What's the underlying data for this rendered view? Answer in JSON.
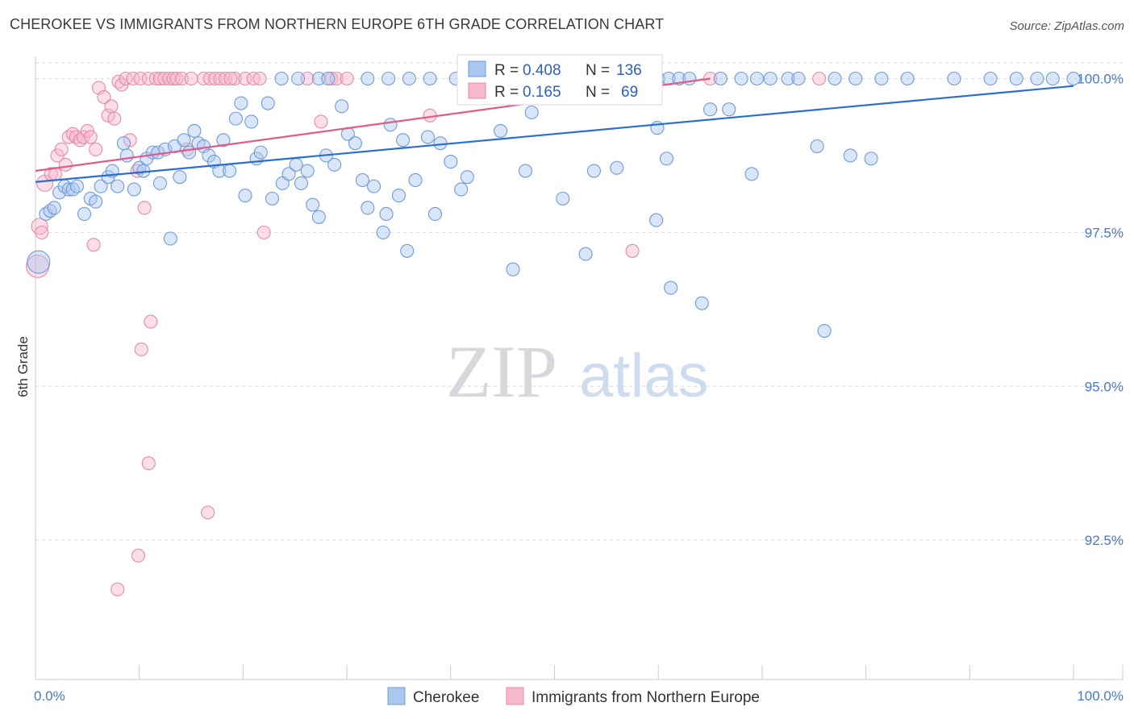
{
  "title": "CHEROKEE VS IMMIGRANTS FROM NORTHERN EUROPE 6TH GRADE CORRELATION CHART",
  "source": "Source: ZipAtlas.com",
  "watermark": {
    "zip": "ZIP",
    "atlas": "atlas"
  },
  "colors": {
    "cherokee_fill": "#aac8ef",
    "cherokee_stroke": "#6f9bd8",
    "cherokee_line": "#2a6ed0",
    "immig_fill": "#f6b8cc",
    "immig_stroke": "#e78aa8",
    "immig_line": "#e05b8a",
    "grid": "#d9dce3",
    "axis_text": "#4a78c6"
  },
  "legend": {
    "r_label": "R =",
    "n_label": "N =",
    "cherokee": {
      "r": "0.408",
      "n": "136"
    },
    "immig": {
      "r": "0.165",
      "n": "69"
    }
  },
  "bottom_legend": {
    "cherokee": "Cherokee",
    "immig": "Immigrants from Northern Europe"
  },
  "chart_data": {
    "type": "scatter",
    "title": "CHEROKEE VS IMMIGRANTS FROM NORTHERN EUROPE 6TH GRADE CORRELATION CHART",
    "xlabel": "",
    "ylabel": "6th Grade",
    "xlim": [
      0,
      100
    ],
    "ylim": [
      90.25,
      100.3
    ],
    "x_tick_labels": [
      "0.0%",
      "100.0%"
    ],
    "y_ticks": [
      92.5,
      95.0,
      97.5,
      100.0
    ],
    "y_tick_labels": [
      "92.5%",
      "95.0%",
      "97.5%",
      "100.0%"
    ],
    "grid": true,
    "legend_position": "top-center",
    "series": [
      {
        "name": "Cherokee",
        "r": 0.408,
        "n": 136,
        "trend": {
          "x0": 0,
          "y0": 98.32,
          "x1": 100,
          "y1": 99.88
        },
        "points": [
          [
            0.3,
            97.02,
            14
          ],
          [
            1.0,
            97.8,
            8
          ],
          [
            1.4,
            97.85,
            8
          ],
          [
            1.8,
            97.9,
            8
          ],
          [
            2.3,
            98.15,
            8
          ],
          [
            2.8,
            98.25,
            8
          ],
          [
            3.2,
            98.2,
            8
          ],
          [
            3.6,
            98.2,
            8
          ],
          [
            4.0,
            98.25,
            8
          ],
          [
            4.7,
            97.8,
            8
          ],
          [
            5.3,
            98.05,
            8
          ],
          [
            5.8,
            98.0,
            8
          ],
          [
            6.3,
            98.25,
            8
          ],
          [
            7.0,
            98.4,
            8
          ],
          [
            7.4,
            98.5,
            8
          ],
          [
            7.9,
            98.25,
            8
          ],
          [
            8.5,
            98.95,
            8
          ],
          [
            8.8,
            98.75,
            8
          ],
          [
            9.5,
            98.2,
            8
          ],
          [
            10.0,
            98.55,
            8
          ],
          [
            10.4,
            98.5,
            8
          ],
          [
            10.7,
            98.7,
            8
          ],
          [
            11.3,
            98.8,
            8
          ],
          [
            11.8,
            98.8,
            8
          ],
          [
            12.0,
            98.3,
            8
          ],
          [
            12.5,
            98.85,
            8
          ],
          [
            13.0,
            97.4,
            8
          ],
          [
            13.4,
            98.9,
            8
          ],
          [
            13.9,
            98.4,
            8
          ],
          [
            14.3,
            99.0,
            8
          ],
          [
            14.8,
            98.8,
            8
          ],
          [
            15.3,
            99.15,
            8
          ],
          [
            15.7,
            98.95,
            8
          ],
          [
            16.2,
            98.9,
            8
          ],
          [
            16.7,
            98.75,
            8
          ],
          [
            17.2,
            98.65,
            8
          ],
          [
            17.7,
            98.5,
            8
          ],
          [
            18.1,
            99.0,
            8
          ],
          [
            18.7,
            98.5,
            8
          ],
          [
            19.3,
            99.35,
            8
          ],
          [
            19.8,
            99.6,
            8
          ],
          [
            20.2,
            98.1,
            8
          ],
          [
            20.8,
            99.3,
            8
          ],
          [
            21.3,
            98.7,
            8
          ],
          [
            21.7,
            98.8,
            8
          ],
          [
            22.4,
            99.6,
            8
          ],
          [
            22.8,
            98.05,
            8
          ],
          [
            23.8,
            98.3,
            8
          ],
          [
            24.4,
            98.45,
            8
          ],
          [
            25.1,
            98.6,
            8
          ],
          [
            25.6,
            98.3,
            8
          ],
          [
            26.2,
            98.5,
            8
          ],
          [
            26.7,
            97.95,
            8
          ],
          [
            27.3,
            97.75,
            8
          ],
          [
            28.0,
            98.75,
            8
          ],
          [
            28.8,
            98.6,
            8
          ],
          [
            29.5,
            99.55,
            8
          ],
          [
            30.1,
            99.1,
            8
          ],
          [
            30.8,
            98.95,
            8
          ],
          [
            31.5,
            98.35,
            8
          ],
          [
            32.0,
            97.9,
            8
          ],
          [
            32.6,
            98.25,
            8
          ],
          [
            33.5,
            97.5,
            8
          ],
          [
            33.8,
            97.8,
            8
          ],
          [
            34.2,
            99.25,
            8
          ],
          [
            35.0,
            98.1,
            8
          ],
          [
            35.4,
            99.0,
            8
          ],
          [
            35.8,
            97.2,
            8
          ],
          [
            36.6,
            98.35,
            8
          ],
          [
            37.8,
            99.05,
            8
          ],
          [
            38.5,
            97.8,
            8
          ],
          [
            39.0,
            98.95,
            8
          ],
          [
            40.0,
            98.65,
            8
          ],
          [
            41.0,
            98.2,
            8
          ],
          [
            41.6,
            98.4,
            8
          ],
          [
            44.8,
            99.15,
            8
          ],
          [
            46.0,
            96.9,
            8
          ],
          [
            47.2,
            98.5,
            8
          ],
          [
            47.8,
            99.45,
            8
          ],
          [
            50.8,
            98.05,
            8
          ],
          [
            53.0,
            97.15,
            8
          ],
          [
            53.8,
            98.5,
            8
          ],
          [
            56.0,
            98.55,
            8
          ],
          [
            59.8,
            97.7,
            8
          ],
          [
            59.9,
            99.2,
            8
          ],
          [
            60.8,
            98.7,
            8
          ],
          [
            61.2,
            96.6,
            8
          ],
          [
            64.2,
            96.35,
            8
          ],
          [
            65.0,
            99.5,
            8
          ],
          [
            66.8,
            99.5,
            8
          ],
          [
            69.0,
            98.45,
            8
          ],
          [
            75.3,
            98.9,
            8
          ],
          [
            76.0,
            95.9,
            8
          ],
          [
            78.5,
            98.75,
            8
          ],
          [
            80.5,
            98.7,
            8
          ],
          [
            23.7,
            100.0,
            8
          ],
          [
            25.3,
            100.0,
            8
          ],
          [
            27.3,
            100.0,
            8
          ],
          [
            28.2,
            100.0,
            8
          ],
          [
            32.0,
            100.0,
            8
          ],
          [
            34.0,
            100.0,
            8
          ],
          [
            36.0,
            100.0,
            8
          ],
          [
            38.0,
            100.0,
            8
          ],
          [
            40.5,
            100.0,
            8
          ],
          [
            45.5,
            100.0,
            8
          ],
          [
            50.0,
            100.0,
            8
          ],
          [
            51.5,
            100.0,
            8
          ],
          [
            53.0,
            100.0,
            8
          ],
          [
            55.0,
            100.0,
            8
          ],
          [
            60.0,
            100.0,
            8
          ],
          [
            61.0,
            100.0,
            8
          ],
          [
            62.0,
            100.0,
            8
          ],
          [
            63.0,
            100.0,
            8
          ],
          [
            66.0,
            100.0,
            8
          ],
          [
            68.0,
            100.0,
            8
          ],
          [
            69.5,
            100.0,
            8
          ],
          [
            70.8,
            100.0,
            8
          ],
          [
            72.5,
            100.0,
            8
          ],
          [
            73.5,
            100.0,
            8
          ],
          [
            77.0,
            100.0,
            8
          ],
          [
            79.0,
            100.0,
            8
          ],
          [
            81.5,
            100.0,
            8
          ],
          [
            84.0,
            100.0,
            8
          ],
          [
            88.5,
            100.0,
            8
          ],
          [
            92.0,
            100.0,
            8
          ],
          [
            94.5,
            100.0,
            8
          ],
          [
            96.5,
            100.0,
            8
          ],
          [
            98.0,
            100.0,
            8
          ],
          [
            100.0,
            100.0,
            8
          ]
        ]
      },
      {
        "name": "Immigrants from Northern Europe",
        "r": 0.165,
        "n": 69,
        "trend": {
          "x0": 0,
          "y0": 98.5,
          "x1": 65,
          "y1": 100.0
        },
        "points": [
          [
            0.2,
            96.95,
            14
          ],
          [
            0.4,
            97.6,
            10
          ],
          [
            0.6,
            97.5,
            8
          ],
          [
            0.9,
            98.3,
            10
          ],
          [
            1.5,
            98.45,
            8
          ],
          [
            1.9,
            98.45,
            8
          ],
          [
            2.1,
            98.75,
            8
          ],
          [
            2.5,
            98.85,
            8
          ],
          [
            2.9,
            98.6,
            8
          ],
          [
            3.2,
            99.05,
            8
          ],
          [
            3.6,
            99.1,
            8
          ],
          [
            3.9,
            99.05,
            8
          ],
          [
            4.3,
            99.0,
            8
          ],
          [
            4.6,
            99.05,
            8
          ],
          [
            5.0,
            99.15,
            8
          ],
          [
            5.3,
            99.05,
            8
          ],
          [
            5.6,
            97.3,
            8
          ],
          [
            5.8,
            98.85,
            8
          ],
          [
            6.1,
            99.85,
            8
          ],
          [
            6.6,
            99.7,
            8
          ],
          [
            7.0,
            99.4,
            8
          ],
          [
            7.3,
            99.55,
            8
          ],
          [
            7.6,
            99.35,
            8
          ],
          [
            8.0,
            99.95,
            8
          ],
          [
            8.3,
            99.9,
            8
          ],
          [
            8.7,
            100.0,
            8
          ],
          [
            9.1,
            99.0,
            8
          ],
          [
            9.4,
            100.0,
            8
          ],
          [
            9.8,
            98.5,
            8
          ],
          [
            10.1,
            100.0,
            8
          ],
          [
            10.5,
            97.9,
            8
          ],
          [
            10.9,
            100.0,
            8
          ],
          [
            11.1,
            96.05,
            8
          ],
          [
            11.6,
            100.0,
            8
          ],
          [
            12.0,
            100.0,
            8
          ],
          [
            12.4,
            100.0,
            8
          ],
          [
            12.9,
            100.0,
            8
          ],
          [
            13.3,
            100.0,
            8
          ],
          [
            13.6,
            100.0,
            8
          ],
          [
            14.1,
            100.0,
            8
          ],
          [
            14.6,
            98.85,
            8
          ],
          [
            15.0,
            100.0,
            8
          ],
          [
            16.2,
            100.0,
            8
          ],
          [
            16.8,
            100.0,
            8
          ],
          [
            17.3,
            100.0,
            8
          ],
          [
            17.8,
            100.0,
            8
          ],
          [
            18.3,
            100.0,
            8
          ],
          [
            19.2,
            100.0,
            8
          ],
          [
            20.2,
            100.0,
            8
          ],
          [
            21.0,
            100.0,
            8
          ],
          [
            21.6,
            100.0,
            8
          ],
          [
            22.0,
            97.5,
            8
          ],
          [
            26.2,
            100.0,
            8
          ],
          [
            27.5,
            99.3,
            8
          ],
          [
            28.5,
            100.0,
            8
          ],
          [
            29.0,
            100.0,
            8
          ],
          [
            38.0,
            99.4,
            8
          ],
          [
            45.0,
            100.0,
            8
          ],
          [
            48.0,
            100.0,
            8
          ],
          [
            57.5,
            97.2,
            8
          ],
          [
            65.0,
            100.0,
            8
          ],
          [
            75.5,
            100.0,
            8
          ],
          [
            10.2,
            95.6,
            8
          ],
          [
            10.9,
            93.75,
            8
          ],
          [
            16.6,
            92.95,
            8
          ],
          [
            9.9,
            92.25,
            8
          ],
          [
            7.9,
            91.7,
            8
          ],
          [
            18.8,
            100.0,
            8
          ],
          [
            30.0,
            100.0,
            8
          ]
        ]
      }
    ]
  }
}
